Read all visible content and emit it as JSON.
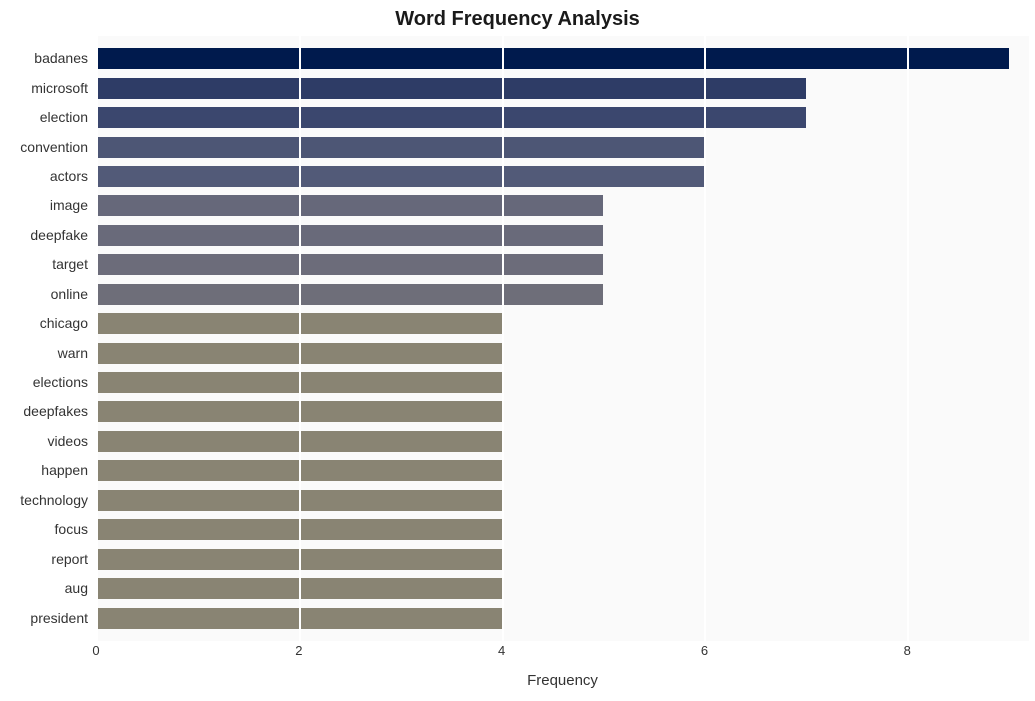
{
  "chart": {
    "type": "bar-horizontal",
    "title": "Word Frequency Analysis",
    "title_fontsize": 20,
    "title_fontweight": "bold",
    "xlabel": "Frequency",
    "xlabel_fontsize": 15,
    "label_fontsize": 14,
    "tick_fontsize": 13,
    "background_color": "#ffffff",
    "plot_background_color": "#fafafa",
    "grid_color": "#ffffff",
    "xlim": [
      0,
      9.2
    ],
    "xticks": [
      0,
      2,
      4,
      6,
      8
    ],
    "bar_height_ratio": 0.75,
    "data": [
      {
        "label": "badanes",
        "value": 9,
        "color": "#001a4d"
      },
      {
        "label": "microsoft",
        "value": 7,
        "color": "#2e3c66"
      },
      {
        "label": "election",
        "value": 7,
        "color": "#3b476e"
      },
      {
        "label": "convention",
        "value": 6,
        "color": "#4d5675"
      },
      {
        "label": "actors",
        "value": 6,
        "color": "#525a78"
      },
      {
        "label": "image",
        "value": 5,
        "color": "#66687a"
      },
      {
        "label": "deepfake",
        "value": 5,
        "color": "#696a7a"
      },
      {
        "label": "target",
        "value": 5,
        "color": "#6c6c7a"
      },
      {
        "label": "online",
        "value": 5,
        "color": "#6e6e79"
      },
      {
        "label": "chicago",
        "value": 4,
        "color": "#898473"
      },
      {
        "label": "warn",
        "value": 4,
        "color": "#898473"
      },
      {
        "label": "elections",
        "value": 4,
        "color": "#898473"
      },
      {
        "label": "deepfakes",
        "value": 4,
        "color": "#898473"
      },
      {
        "label": "videos",
        "value": 4,
        "color": "#898473"
      },
      {
        "label": "happen",
        "value": 4,
        "color": "#898473"
      },
      {
        "label": "technology",
        "value": 4,
        "color": "#898473"
      },
      {
        "label": "focus",
        "value": 4,
        "color": "#898473"
      },
      {
        "label": "report",
        "value": 4,
        "color": "#898473"
      },
      {
        "label": "aug",
        "value": 4,
        "color": "#898473"
      },
      {
        "label": "president",
        "value": 4,
        "color": "#898473"
      }
    ]
  }
}
